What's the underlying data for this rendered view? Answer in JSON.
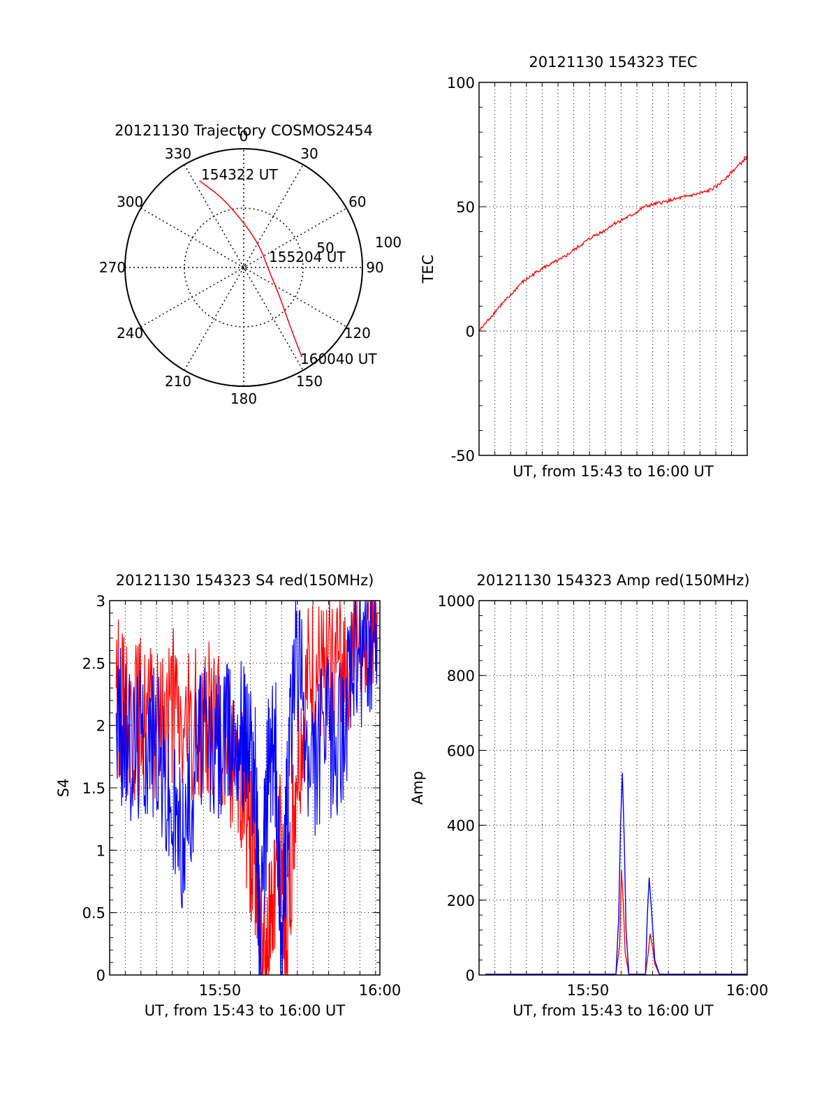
{
  "colors": {
    "red": "#ff0000",
    "blue": "#0000ff",
    "axis": "#000000",
    "grid": "#000000"
  },
  "chart_data": [
    {
      "type": "polar",
      "title": "20121130 Trajectory COSMOS2454",
      "azimuth_labels": [
        "0",
        "30",
        "60",
        "90",
        "120",
        "150",
        "180",
        "210",
        "240",
        "270",
        "300",
        "330"
      ],
      "radial_labels": [
        "50",
        "100"
      ],
      "radial_range": [
        0,
        100
      ],
      "grid": true,
      "series": [
        {
          "color": "red",
          "points": [
            {
              "az": 333,
              "r": 82
            },
            {
              "az": 342,
              "r": 63
            },
            {
              "az": 352,
              "r": 46
            },
            {
              "az": 10,
              "r": 31
            },
            {
              "az": 45,
              "r": 21
            },
            {
              "az": 95,
              "r": 21
            },
            {
              "az": 128,
              "r": 38
            },
            {
              "az": 140,
              "r": 58
            },
            {
              "az": 145,
              "r": 77
            },
            {
              "az": 147,
              "r": 90
            }
          ]
        }
      ],
      "annotations": [
        {
          "text": "154322 UT",
          "az": 333,
          "r": 82
        },
        {
          "text": "155204 UT",
          "az": 75,
          "r": 24
        },
        {
          "text": "160040 UT",
          "az": 147,
          "r": 90
        }
      ]
    },
    {
      "type": "line",
      "title": "20121130 154323 TEC",
      "xlabel": "UT, from 15:43 to 16:00 UT",
      "ylabel": "TEC",
      "xlim": [
        0,
        1040
      ],
      "ylim": [
        -50,
        100
      ],
      "yticks": [
        "100",
        "50",
        "0",
        "-50"
      ],
      "xticks": [],
      "grid": true,
      "series": [
        {
          "color": "red",
          "x": [
            0,
            40,
            80,
            120,
            160,
            200,
            240,
            280,
            320,
            360,
            400,
            440,
            480,
            520,
            560,
            600,
            640,
            680,
            720,
            760,
            800,
            840,
            880,
            920,
            960,
            1000,
            1040
          ],
          "y": [
            0,
            5,
            10,
            14,
            19,
            22,
            25,
            27,
            29,
            32,
            35,
            38,
            40,
            43,
            45,
            47,
            50,
            51,
            52,
            53,
            54,
            55,
            56,
            58,
            62,
            66,
            70
          ]
        }
      ]
    },
    {
      "type": "line",
      "title": "20121130 154323 S4 red(150MHz)",
      "xlabel": "UT, from 15:43 to 16:00 UT",
      "ylabel": "S4",
      "xlim": [
        15.71,
        16.0
      ],
      "ylim": [
        0,
        3
      ],
      "yticks": [
        "3",
        "2.5",
        "2",
        "1.5",
        "1",
        "0.5",
        "0"
      ],
      "xticks": [
        "15:50",
        "16:00"
      ],
      "grid": true,
      "series": [
        {
          "color": "red",
          "x": [
            15.717,
            15.73,
            15.745,
            15.76,
            15.775,
            15.79,
            15.805,
            15.82,
            15.835,
            15.85,
            15.858,
            15.866,
            15.872,
            15.88,
            15.888,
            15.895,
            15.9,
            15.91,
            15.925,
            15.94,
            15.955,
            15.97,
            15.985,
            15.997
          ],
          "y": [
            2.3,
            2.0,
            2.1,
            1.9,
            2.2,
            1.9,
            2.0,
            2.1,
            1.8,
            1.7,
            1.2,
            0.9,
            0.5,
            0.15,
            0.9,
            1.0,
            0.2,
            1.6,
            2.4,
            2.3,
            2.5,
            2.6,
            2.8,
            2.9
          ]
        },
        {
          "color": "blue",
          "x": [
            15.717,
            15.73,
            15.745,
            15.76,
            15.775,
            15.79,
            15.805,
            15.82,
            15.835,
            15.85,
            15.858,
            15.866,
            15.872,
            15.88,
            15.888,
            15.895,
            15.9,
            15.91,
            15.925,
            15.94,
            15.955,
            15.97,
            15.985,
            15.997
          ],
          "y": [
            2.1,
            1.8,
            1.9,
            1.9,
            1.3,
            1.1,
            1.9,
            1.8,
            1.9,
            2.0,
            1.9,
            1.6,
            0.2,
            1.7,
            1.8,
            0.2,
            1.2,
            2.7,
            1.5,
            2.0,
            1.8,
            2.4,
            2.6,
            2.7
          ]
        }
      ]
    },
    {
      "type": "line",
      "title": "20121130 154323 Amp red(150MHz)",
      "xlabel": "UT, from 15:43 to 16:00 UT",
      "ylabel": "Amp",
      "xlim": [
        15.71,
        16.0
      ],
      "ylim": [
        0,
        1000
      ],
      "yticks": [
        "1000",
        "800",
        "600",
        "400",
        "200",
        "0"
      ],
      "xticks": [
        "15:50",
        "16:00"
      ],
      "grid": true,
      "series": [
        {
          "color": "red",
          "x": [
            15.717,
            15.8,
            15.858,
            15.862,
            15.864,
            15.866,
            15.868,
            15.872,
            15.89,
            15.893,
            15.895,
            15.898,
            15.9,
            15.905,
            16.0
          ],
          "y": [
            2,
            2,
            2,
            80,
            280,
            190,
            60,
            2,
            2,
            60,
            110,
            70,
            30,
            2,
            2
          ]
        },
        {
          "color": "blue",
          "x": [
            15.717,
            15.8,
            15.858,
            15.861,
            15.863,
            15.865,
            15.867,
            15.869,
            15.872,
            15.89,
            15.892,
            15.894,
            15.896,
            15.898,
            15.9,
            15.905,
            16.0
          ],
          "y": [
            2,
            2,
            2,
            150,
            400,
            540,
            360,
            120,
            2,
            2,
            160,
            260,
            190,
            120,
            40,
            2,
            2
          ]
        }
      ]
    }
  ]
}
